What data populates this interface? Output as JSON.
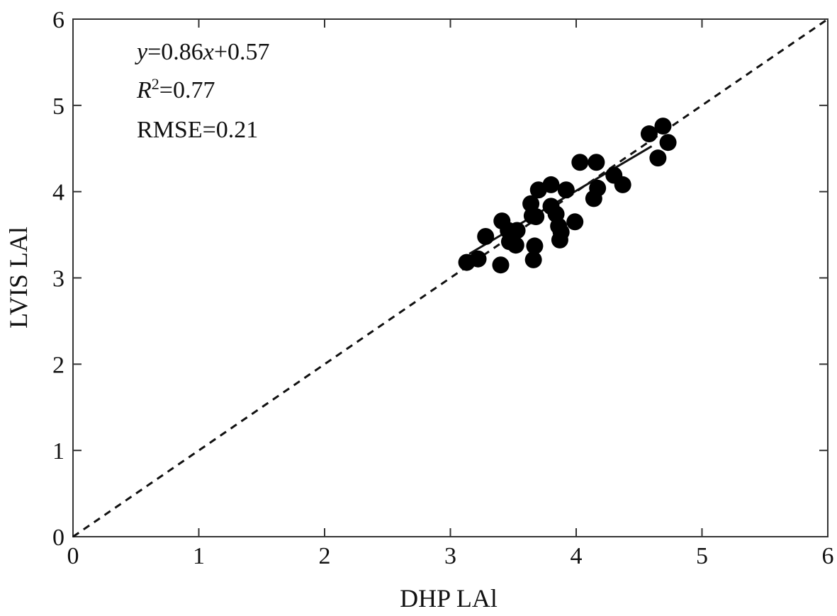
{
  "chart_data": {
    "type": "scatter",
    "title": "",
    "xlabel": "DHP  LAl",
    "ylabel": "LVIS LAl",
    "xlim": [
      0,
      6
    ],
    "ylim": [
      0,
      6
    ],
    "x_ticks": [
      "0",
      "1",
      "2",
      "3",
      "4",
      "5",
      "6"
    ],
    "y_ticks": [
      "0",
      "1",
      "2",
      "3",
      "4",
      "5",
      "6"
    ],
    "grid": false,
    "legend": "none",
    "reference_line": {
      "style": "dashed",
      "x": [
        0,
        6
      ],
      "y": [
        0,
        6
      ]
    },
    "fit_line": {
      "style": "solid",
      "slope": 0.86,
      "intercept": 0.57,
      "x_range": [
        3.15,
        4.6
      ]
    },
    "annotations": {
      "equation": {
        "y": "y",
        "eq1": "=0.86",
        "x": "x",
        "eq2": "+0.57"
      },
      "r2": {
        "r": "R",
        "sup": "2",
        "value": "=0.77"
      },
      "rmse": "RMSE=0.21"
    },
    "x": [
      3.13,
      3.22,
      3.28,
      3.4,
      3.41,
      3.46,
      3.47,
      3.52,
      3.53,
      3.64,
      3.65,
      3.66,
      3.67,
      3.68,
      3.7,
      3.8,
      3.8,
      3.84,
      3.86,
      3.87,
      3.88,
      3.92,
      3.99,
      4.03,
      4.14,
      4.16,
      4.17,
      4.3,
      4.37,
      4.58,
      4.65,
      4.69,
      4.73
    ],
    "y": [
      3.18,
      3.22,
      3.48,
      3.15,
      3.66,
      3.55,
      3.42,
      3.38,
      3.55,
      3.86,
      3.72,
      3.21,
      3.37,
      3.71,
      4.02,
      4.08,
      3.83,
      3.74,
      3.6,
      3.44,
      3.53,
      4.02,
      3.65,
      4.34,
      3.92,
      4.34,
      4.04,
      4.19,
      4.08,
      4.67,
      4.39,
      4.76,
      4.57
    ],
    "colors": {
      "points": "#000000",
      "lines": "#111111",
      "frame": "#333333"
    }
  }
}
